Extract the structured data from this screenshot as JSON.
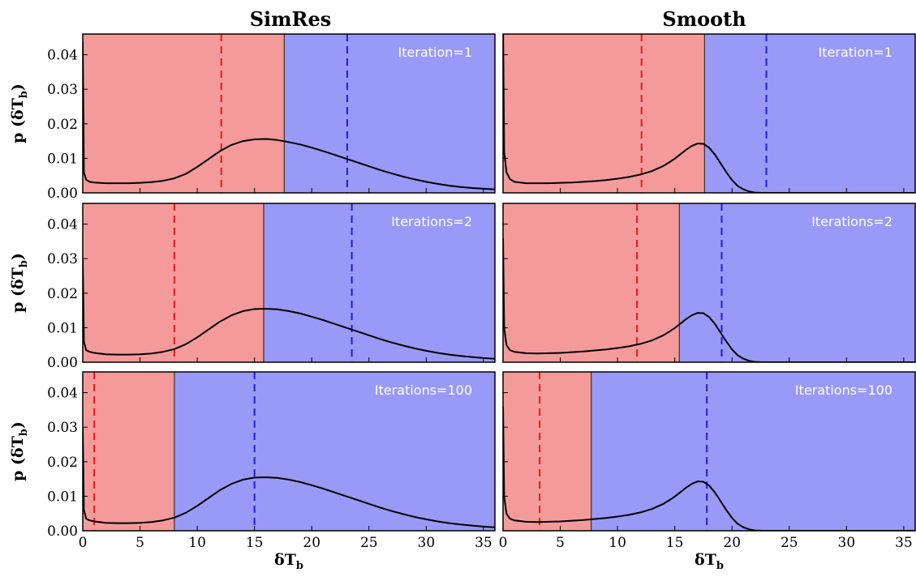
{
  "figure": {
    "columns": [
      "SimRes",
      "Smooth"
    ],
    "ylabel": "p (δT",
    "ylabel_sub": "b",
    "ylabel_close": ")",
    "xlabel": "δT",
    "xlabel_sub": "b",
    "xlim": [
      0,
      36
    ],
    "ylim": [
      0,
      0.046
    ],
    "xticks": [
      0,
      5,
      10,
      15,
      20,
      25,
      30,
      35
    ],
    "yticks": [
      0.0,
      0.01,
      0.02,
      0.03,
      0.04
    ],
    "ytick_labels": [
      "0.00",
      "0.01",
      "0.02",
      "0.03",
      "0.04"
    ],
    "colors": {
      "red_region": "#f59a9a",
      "blue_region": "#9999f7",
      "red_dash": "#e31a1c",
      "blue_dash": "#1f1fd6",
      "curve": "#000000",
      "annotation": "#ffffff"
    }
  },
  "chart_data": [
    {
      "type": "area",
      "column": "SimRes",
      "row": 1,
      "annotation": "Iteration=1",
      "threshold": 17.6,
      "red_mean": 12.1,
      "blue_mean": 23.1,
      "curve": {
        "x": [
          0,
          0.1,
          0.3,
          0.6,
          1,
          2,
          3,
          4,
          5,
          6,
          7,
          8,
          9,
          10,
          11,
          12,
          13,
          14,
          15,
          16,
          17,
          18,
          19,
          20,
          21,
          22,
          23,
          24,
          25,
          26,
          27,
          28,
          29,
          30,
          31,
          32,
          33,
          34,
          35,
          36
        ],
        "y": [
          0.044,
          0.006,
          0.0038,
          0.0032,
          0.003,
          0.0028,
          0.0028,
          0.0028,
          0.0029,
          0.0031,
          0.0035,
          0.0042,
          0.0055,
          0.0075,
          0.0098,
          0.0121,
          0.0139,
          0.015,
          0.0155,
          0.0156,
          0.0153,
          0.0147,
          0.014,
          0.0131,
          0.0121,
          0.011,
          0.0099,
          0.0088,
          0.0077,
          0.0066,
          0.0056,
          0.0047,
          0.0039,
          0.0032,
          0.0026,
          0.0021,
          0.0017,
          0.0014,
          0.0012,
          0.001
        ]
      }
    },
    {
      "type": "area",
      "column": "Smooth",
      "row": 1,
      "annotation": "Iteration=1",
      "threshold": 17.6,
      "red_mean": 12.1,
      "blue_mean": 23.0,
      "curve": {
        "x": [
          0,
          0.1,
          0.3,
          0.6,
          1,
          2,
          3,
          4,
          5,
          6,
          7,
          8,
          9,
          10,
          11,
          12,
          13,
          14,
          14.5,
          15,
          15.5,
          16,
          16.5,
          17,
          17.5,
          18,
          18.5,
          19,
          19.5,
          20,
          20.5,
          21,
          21.5,
          22,
          22.5,
          23,
          24,
          36
        ],
        "y": [
          0.05,
          0.012,
          0.006,
          0.004,
          0.0032,
          0.0028,
          0.0028,
          0.0028,
          0.0029,
          0.003,
          0.0032,
          0.0034,
          0.0037,
          0.0041,
          0.0046,
          0.0053,
          0.0063,
          0.0078,
          0.0088,
          0.0099,
          0.0112,
          0.0125,
          0.0136,
          0.0143,
          0.0142,
          0.0131,
          0.0111,
          0.0086,
          0.006,
          0.0037,
          0.002,
          0.001,
          0.0004,
          0.0001,
          3e-05,
          0,
          0,
          0
        ]
      }
    },
    {
      "type": "area",
      "column": "SimRes",
      "row": 2,
      "annotation": "Iterations=2",
      "threshold": 15.8,
      "red_mean": 8.0,
      "blue_mean": 23.5,
      "curve": {
        "x": [
          0,
          0.1,
          0.3,
          0.6,
          1,
          2,
          3,
          4,
          5,
          6,
          7,
          8,
          9,
          10,
          11,
          12,
          13,
          14,
          15,
          16,
          17,
          18,
          19,
          20,
          21,
          22,
          23,
          24,
          25,
          26,
          27,
          28,
          29,
          30,
          31,
          32,
          33,
          34,
          35,
          36
        ],
        "y": [
          0.03,
          0.006,
          0.0035,
          0.003,
          0.0027,
          0.0023,
          0.0022,
          0.0022,
          0.0023,
          0.0025,
          0.003,
          0.0038,
          0.0052,
          0.0072,
          0.0095,
          0.0118,
          0.0136,
          0.0148,
          0.0154,
          0.0155,
          0.0153,
          0.0148,
          0.0141,
          0.0132,
          0.0122,
          0.0111,
          0.01,
          0.0089,
          0.0078,
          0.0067,
          0.0057,
          0.0048,
          0.004,
          0.0033,
          0.0027,
          0.0022,
          0.0018,
          0.0015,
          0.0012,
          0.001
        ]
      }
    },
    {
      "type": "area",
      "column": "Smooth",
      "row": 2,
      "annotation": "Iterations=2",
      "threshold": 15.4,
      "red_mean": 11.7,
      "blue_mean": 19.1,
      "curve": {
        "x": [
          0,
          0.1,
          0.3,
          0.6,
          1,
          2,
          3,
          4,
          5,
          6,
          7,
          8,
          9,
          10,
          11,
          12,
          13,
          14,
          14.5,
          15,
          15.5,
          16,
          16.5,
          17,
          17.5,
          18,
          18.5,
          19,
          19.5,
          20,
          20.5,
          21,
          21.5,
          22,
          22.5,
          23,
          24,
          36
        ],
        "y": [
          0.036,
          0.01,
          0.005,
          0.0035,
          0.003,
          0.0026,
          0.0025,
          0.0026,
          0.0027,
          0.0029,
          0.0031,
          0.0034,
          0.0037,
          0.0041,
          0.0046,
          0.0053,
          0.0063,
          0.0078,
          0.0088,
          0.0099,
          0.0112,
          0.0125,
          0.0136,
          0.0143,
          0.0142,
          0.0131,
          0.0111,
          0.0086,
          0.006,
          0.0037,
          0.002,
          0.001,
          0.0004,
          0.0001,
          3e-05,
          0,
          0,
          0
        ]
      }
    },
    {
      "type": "area",
      "column": "SimRes",
      "row": 3,
      "annotation": "Iterations=100",
      "threshold": 8.0,
      "red_mean": 1.0,
      "blue_mean": 15.0,
      "curve": {
        "x": [
          0,
          0.1,
          0.3,
          0.6,
          1,
          2,
          3,
          4,
          5,
          6,
          7,
          8,
          9,
          10,
          11,
          12,
          13,
          14,
          15,
          16,
          17,
          18,
          19,
          20,
          21,
          22,
          23,
          24,
          25,
          26,
          27,
          28,
          29,
          30,
          31,
          32,
          33,
          34,
          35,
          36
        ],
        "y": [
          0.03,
          0.006,
          0.0035,
          0.003,
          0.0027,
          0.0023,
          0.0022,
          0.0022,
          0.0023,
          0.0025,
          0.003,
          0.0038,
          0.0052,
          0.0072,
          0.0095,
          0.0118,
          0.0136,
          0.0148,
          0.0154,
          0.0155,
          0.0153,
          0.0148,
          0.0141,
          0.0132,
          0.0122,
          0.0111,
          0.01,
          0.0089,
          0.0078,
          0.0067,
          0.0057,
          0.0048,
          0.004,
          0.0033,
          0.0027,
          0.0022,
          0.0018,
          0.0015,
          0.0012,
          0.001
        ]
      }
    },
    {
      "type": "area",
      "column": "Smooth",
      "row": 3,
      "annotation": "Iterations=100",
      "threshold": 7.7,
      "red_mean": 3.2,
      "blue_mean": 17.8,
      "curve": {
        "x": [
          0,
          0.1,
          0.3,
          0.6,
          1,
          2,
          3,
          4,
          5,
          6,
          7,
          8,
          9,
          10,
          11,
          12,
          13,
          14,
          14.5,
          15,
          15.5,
          16,
          16.5,
          17,
          17.5,
          18,
          18.5,
          19,
          19.5,
          20,
          20.5,
          21,
          21.5,
          22,
          22.5,
          23,
          24,
          36
        ],
        "y": [
          0.036,
          0.01,
          0.005,
          0.0035,
          0.003,
          0.0026,
          0.0025,
          0.0026,
          0.0027,
          0.0029,
          0.0031,
          0.0034,
          0.0037,
          0.0041,
          0.0046,
          0.0053,
          0.0063,
          0.0078,
          0.0088,
          0.0099,
          0.0112,
          0.0125,
          0.0136,
          0.0143,
          0.0142,
          0.0131,
          0.0111,
          0.0086,
          0.006,
          0.0037,
          0.002,
          0.001,
          0.0004,
          0.0001,
          3e-05,
          0,
          0,
          0
        ]
      }
    }
  ]
}
